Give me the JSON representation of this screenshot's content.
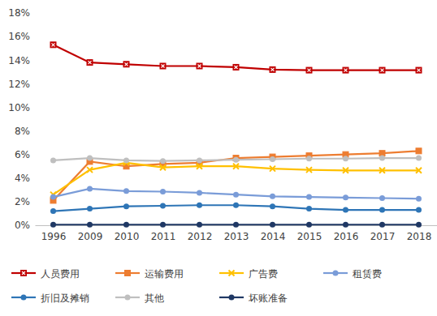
{
  "chart_data": {
    "type": "line",
    "categories": [
      "1996",
      "2009",
      "2010",
      "2011",
      "2012",
      "2013",
      "2014",
      "2015",
      "2016",
      "2017",
      "2018"
    ],
    "ylim": [
      0,
      18
    ],
    "yticks": [
      {
        "value": 0,
        "label": "0%"
      },
      {
        "value": 2,
        "label": "2%"
      },
      {
        "value": 4,
        "label": "4%"
      },
      {
        "value": 6,
        "label": "6%"
      },
      {
        "value": 8,
        "label": "8%"
      },
      {
        "value": 10,
        "label": "10%"
      },
      {
        "value": 12,
        "label": "12%"
      },
      {
        "value": 14,
        "label": "14%"
      },
      {
        "value": 16,
        "label": "16%"
      },
      {
        "value": 18,
        "label": "18%"
      }
    ],
    "grid": false,
    "legend": "bottom",
    "series": [
      {
        "name": "人员费用",
        "color": "#C00000",
        "marker": "square-x",
        "values": [
          15.3,
          13.8,
          13.65,
          13.5,
          13.5,
          13.4,
          13.2,
          13.15,
          13.15,
          13.15,
          13.15
        ]
      },
      {
        "name": "运输费用",
        "color": "#ED7D31",
        "marker": "square",
        "values": [
          2.1,
          5.4,
          5.0,
          5.2,
          5.3,
          5.7,
          5.8,
          5.9,
          6.0,
          6.1,
          6.3
        ]
      },
      {
        "name": "广告费",
        "color": "#FFC000",
        "marker": "x",
        "values": [
          2.6,
          4.7,
          5.3,
          4.9,
          5.0,
          5.0,
          4.8,
          4.7,
          4.65,
          4.65,
          4.65
        ]
      },
      {
        "name": "租赁费",
        "color": "#7A9CD8",
        "marker": "circle",
        "values": [
          2.4,
          3.1,
          2.9,
          2.85,
          2.75,
          2.6,
          2.45,
          2.4,
          2.35,
          2.3,
          2.25
        ]
      },
      {
        "name": "折旧及摊销",
        "color": "#2E75B6",
        "marker": "circle",
        "values": [
          1.2,
          1.4,
          1.6,
          1.65,
          1.7,
          1.7,
          1.6,
          1.4,
          1.3,
          1.3,
          1.3
        ]
      },
      {
        "name": "其他",
        "color": "#BFBFBF",
        "marker": "circle",
        "values": [
          5.5,
          5.7,
          5.5,
          5.45,
          5.5,
          5.55,
          5.6,
          5.65,
          5.65,
          5.7,
          5.7
        ]
      },
      {
        "name": "坏账准备",
        "color": "#1F3864",
        "marker": "circle",
        "values": [
          0.05,
          0.05,
          0.05,
          0.05,
          0.05,
          0.05,
          0.05,
          0.05,
          0.05,
          0.05,
          0.05
        ]
      }
    ]
  }
}
